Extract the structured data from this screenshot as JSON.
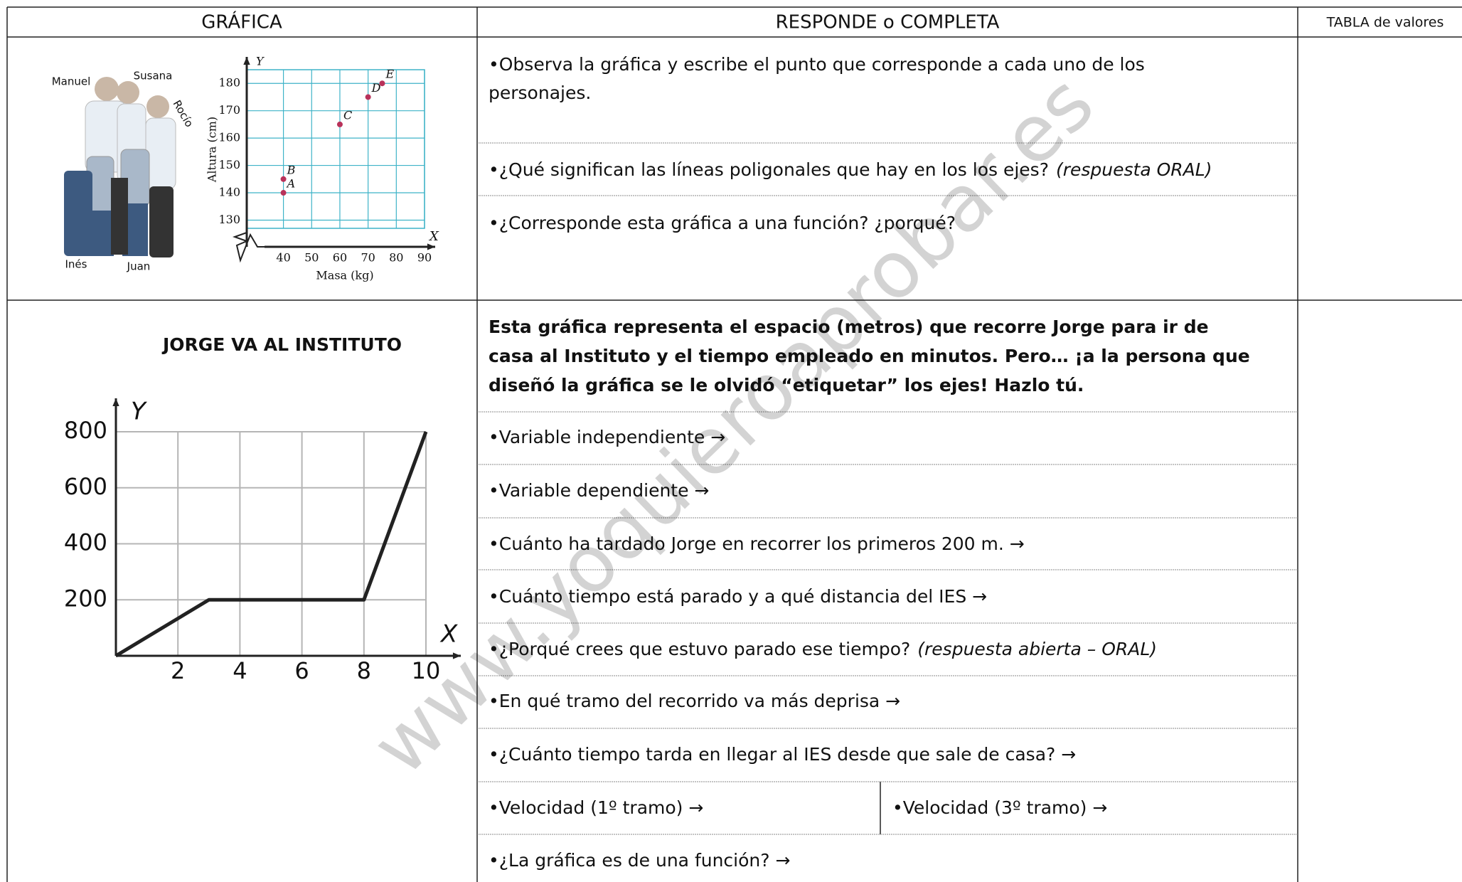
{
  "header": [
    "GRÁFICA",
    "RESPONDE o COMPLETA",
    "TABLA de valores"
  ],
  "watermark": "www.yoquieroaprobar.es",
  "rows": [
    {
      "photo_names": [
        "Manuel",
        "Susana",
        "Rocío",
        "Inés",
        "Juan"
      ],
      "questions": [
        {
          "lines": [
            "•Observa la gráfica y escribe el punto que corresponde a cada uno de los",
            "personajes."
          ]
        },
        {
          "lines": [
            "•¿Qué significan las líneas poligonales que hay en los los ejes?"
          ],
          "note": "(respuesta ORAL)"
        },
        {
          "lines": [
            "•¿Corresponde esta gráfica a una función? ¿porqué?"
          ]
        }
      ]
    },
    {
      "intro": [
        "Esta gráfica representa el espacio (metros) que recorre Jorge para ir de",
        "casa al Instituto  y el tiempo empleado en minutos. Pero… ¡a la persona que",
        "diseñó la gráfica se le olvidó “etiquetar” los ejes! Hazlo tú."
      ],
      "items": [
        {
          "text": "•Variable independiente →"
        },
        {
          "text": "•Variable dependiente →"
        },
        {
          "text": "•Cuánto ha tardado Jorge en recorrer los primeros 200 m. →"
        },
        {
          "text": "•Cuánto tiempo está parado y a qué distancia del IES →"
        },
        {
          "text": "•¿Porqué crees que estuvo parado ese tiempo?",
          "note": "(respuesta abierta – ORAL)"
        },
        {
          "text": "•En qué tramo del recorrido va más deprisa →"
        },
        {
          "text": "•¿Cuánto tiempo tarda en llegar al IES desde que sale de casa? →"
        },
        {
          "text": "•Velocidad (1º tramo) →"
        },
        {
          "text": "•Velocidad (3º tramo) →"
        },
        {
          "text": "•¿La gráfica es de una función? →"
        }
      ]
    }
  ],
  "chart_data": [
    {
      "type": "scatter",
      "x_label": "Masa (kg)",
      "y_label": "Altura (cm)",
      "x_name": "X",
      "y_name": "Y",
      "x": [
        40,
        40,
        60,
        70,
        75
      ],
      "values": [
        140,
        145,
        165,
        175,
        180
      ],
      "point_labels": [
        "A",
        "B",
        "C",
        "D",
        "E"
      ],
      "color": "#b8325a",
      "grid_color": "#3fb3c8",
      "xlim": [
        27,
        90
      ],
      "ylim": [
        127,
        185
      ],
      "xticks": [
        40,
        50,
        60,
        70,
        80,
        90
      ],
      "yticks": [
        130,
        140,
        150,
        160,
        170,
        180
      ],
      "grid": true
    },
    {
      "type": "line",
      "title": "JORGE VA AL INSTITUTO",
      "x_name": "X",
      "y_name": "Y",
      "x": [
        0,
        3,
        8,
        10
      ],
      "values": [
        0,
        200,
        200,
        800
      ],
      "color": "#222222",
      "xlim": [
        0,
        10
      ],
      "ylim": [
        0,
        800
      ],
      "xticks": [
        2,
        4,
        6,
        8,
        10
      ],
      "yticks": [
        200,
        400,
        600,
        800
      ],
      "grid": true
    }
  ]
}
